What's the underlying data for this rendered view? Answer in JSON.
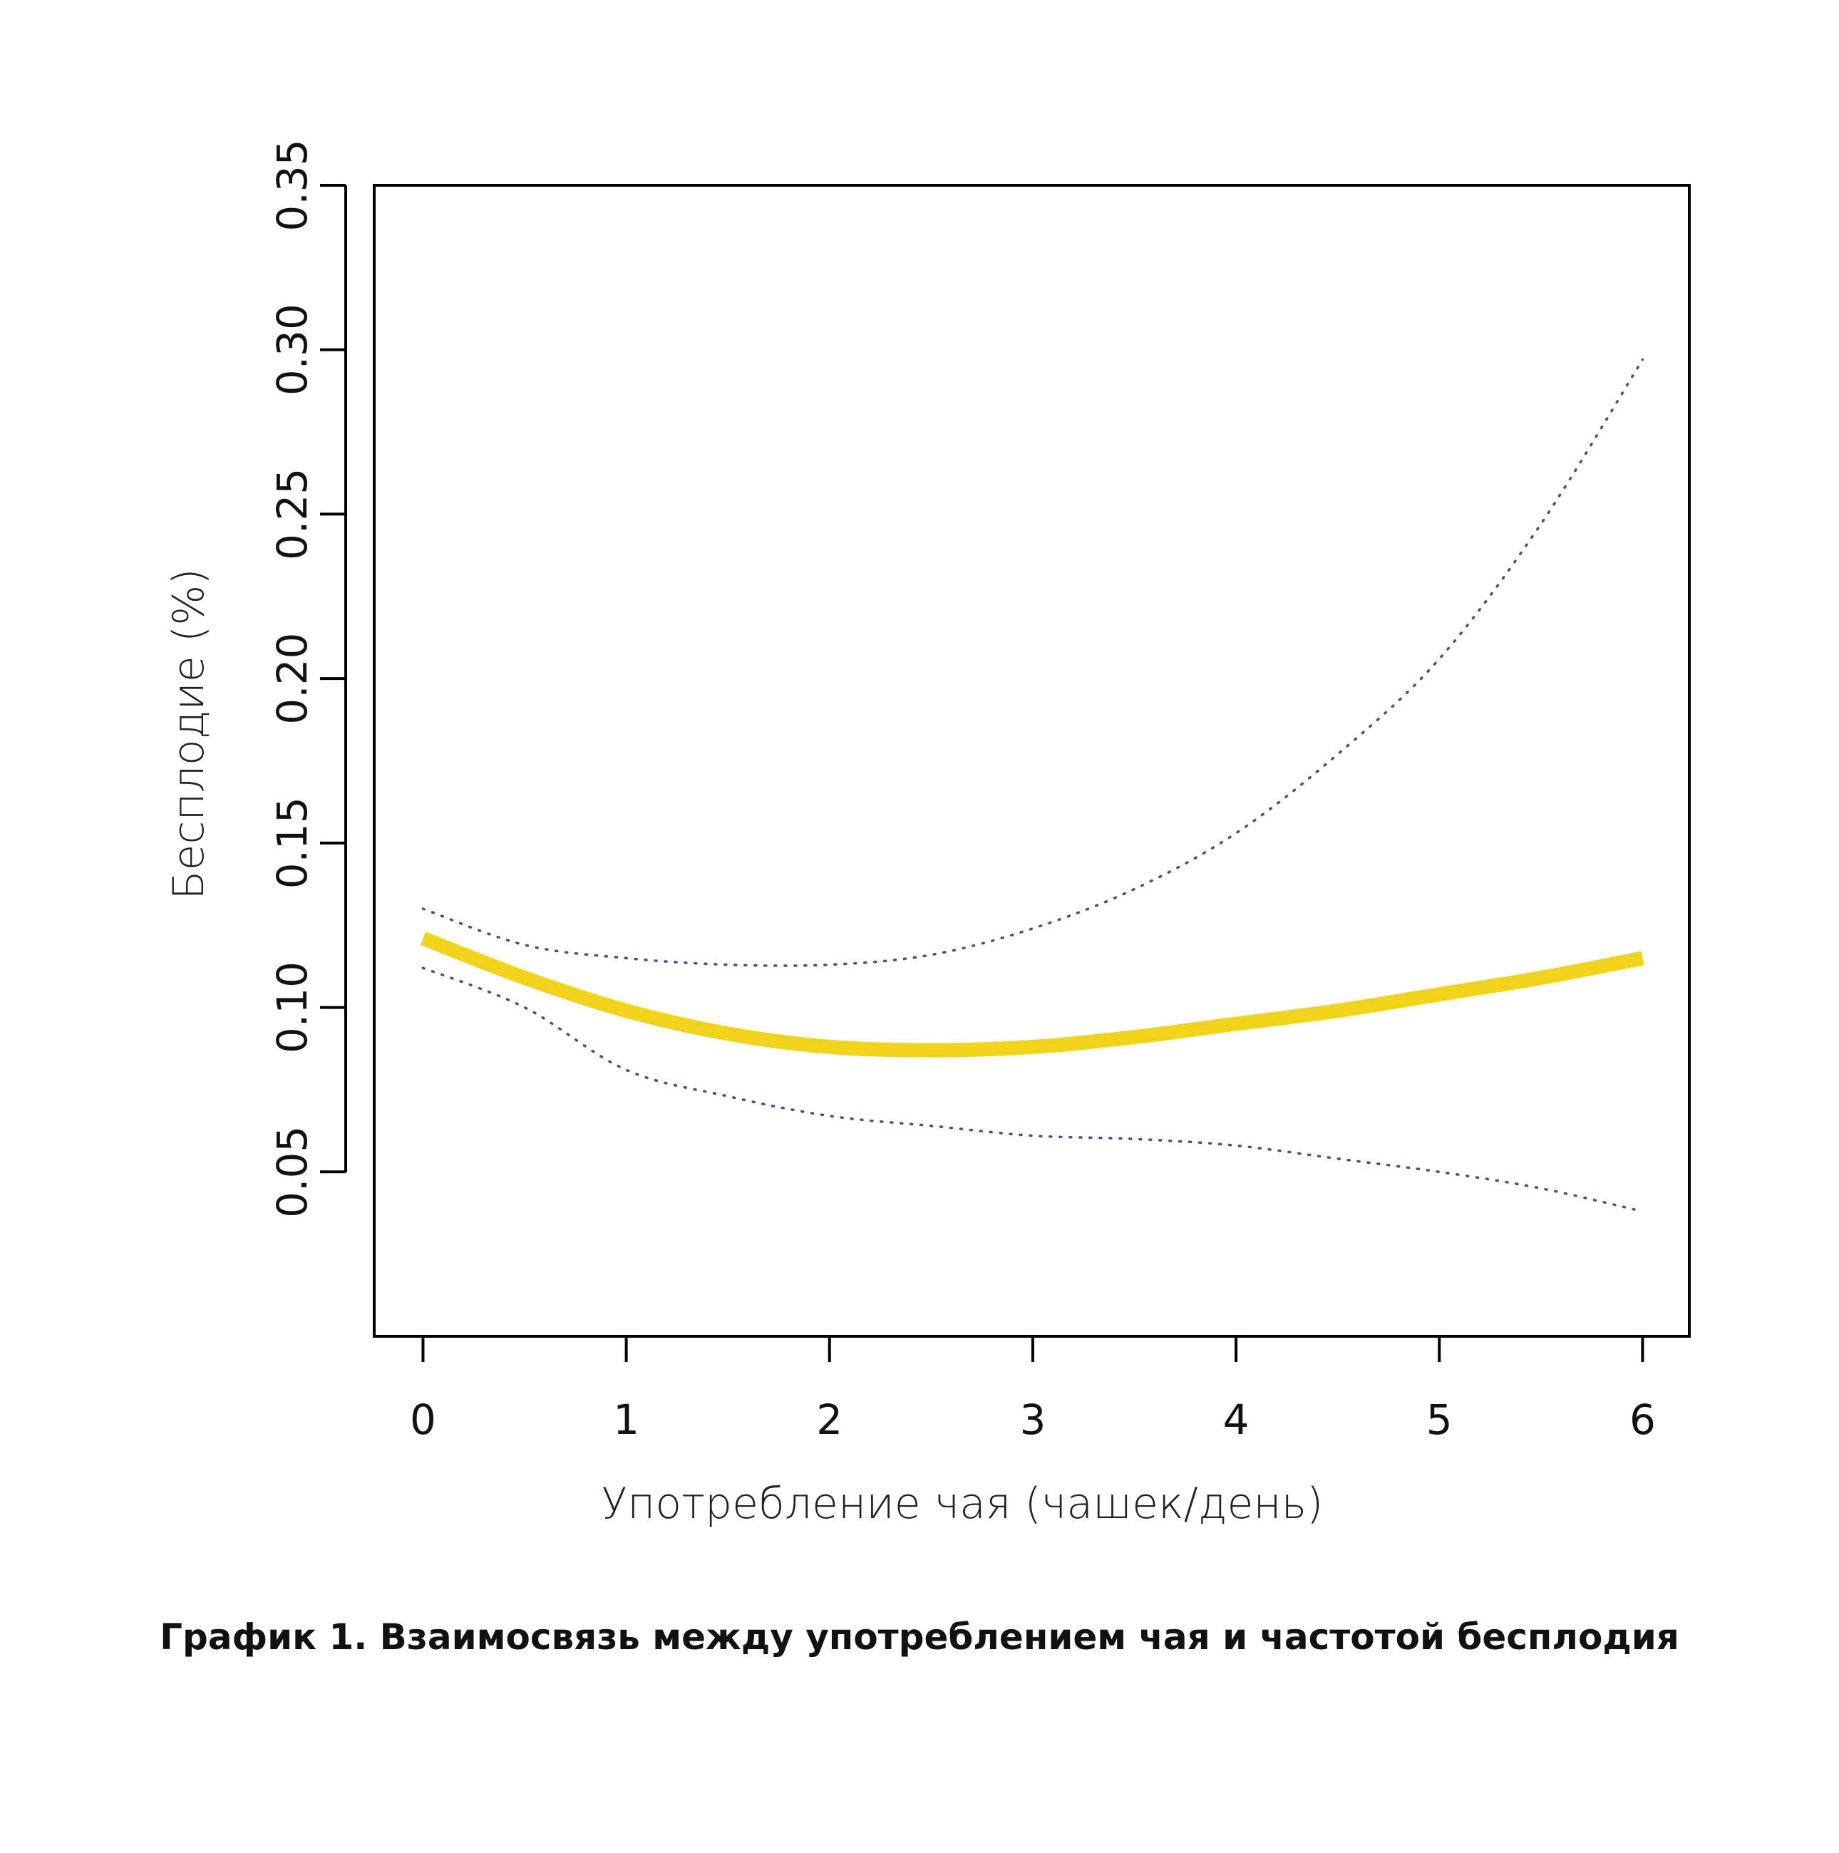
{
  "chart_data": {
    "type": "line",
    "xlabel": "Употребление чая (чашек/день)",
    "ylabel": "Бесплодие (%)",
    "caption": "График 1. Взаимосвязь между употреблением чая и частотой бесплодия",
    "xlim": [
      -0.24,
      6.23
    ],
    "ylim": [
      0.0,
      0.35
    ],
    "x_ticks": [
      0,
      1,
      2,
      3,
      4,
      5,
      6
    ],
    "x_tick_labels": [
      "0",
      "1",
      "2",
      "3",
      "4",
      "5",
      "6"
    ],
    "y_ticks": [
      0.05,
      0.1,
      0.15,
      0.2,
      0.25,
      0.3,
      0.35
    ],
    "y_tick_labels": [
      "0.05",
      "0.10",
      "0.15",
      "0.20",
      "0.25",
      "0.30",
      "0.35"
    ],
    "grid": false,
    "series": [
      {
        "style": "solid",
        "color": "#F2D31B",
        "x": [
          0,
          0.5,
          1,
          1.5,
          2,
          2.5,
          3,
          3.5,
          4,
          4.5,
          5,
          5.5,
          6
        ],
        "y": [
          0.121,
          0.109,
          0.099,
          0.092,
          0.088,
          0.087,
          0.088,
          0.091,
          0.095,
          0.099,
          0.104,
          0.109,
          0.115
        ]
      },
      {
        "style": "dotted",
        "color": "#4B4A8C",
        "x": [
          0,
          0.5,
          1,
          1.5,
          2,
          2.5,
          3,
          3.5,
          4,
          4.5,
          5,
          5.5,
          6
        ],
        "y": [
          0.13,
          0.119,
          0.115,
          0.113,
          0.113,
          0.116,
          0.124,
          0.136,
          0.153,
          0.177,
          0.206,
          0.247,
          0.297
        ]
      },
      {
        "style": "dotted",
        "color": "#4B4A8C",
        "x": [
          0,
          0.5,
          1,
          1.5,
          2,
          2.5,
          3,
          3.5,
          4,
          4.5,
          5,
          5.5,
          6
        ],
        "y": [
          0.112,
          0.1,
          0.081,
          0.073,
          0.067,
          0.064,
          0.061,
          0.06,
          0.058,
          0.054,
          0.05,
          0.045,
          0.038
        ]
      }
    ]
  }
}
